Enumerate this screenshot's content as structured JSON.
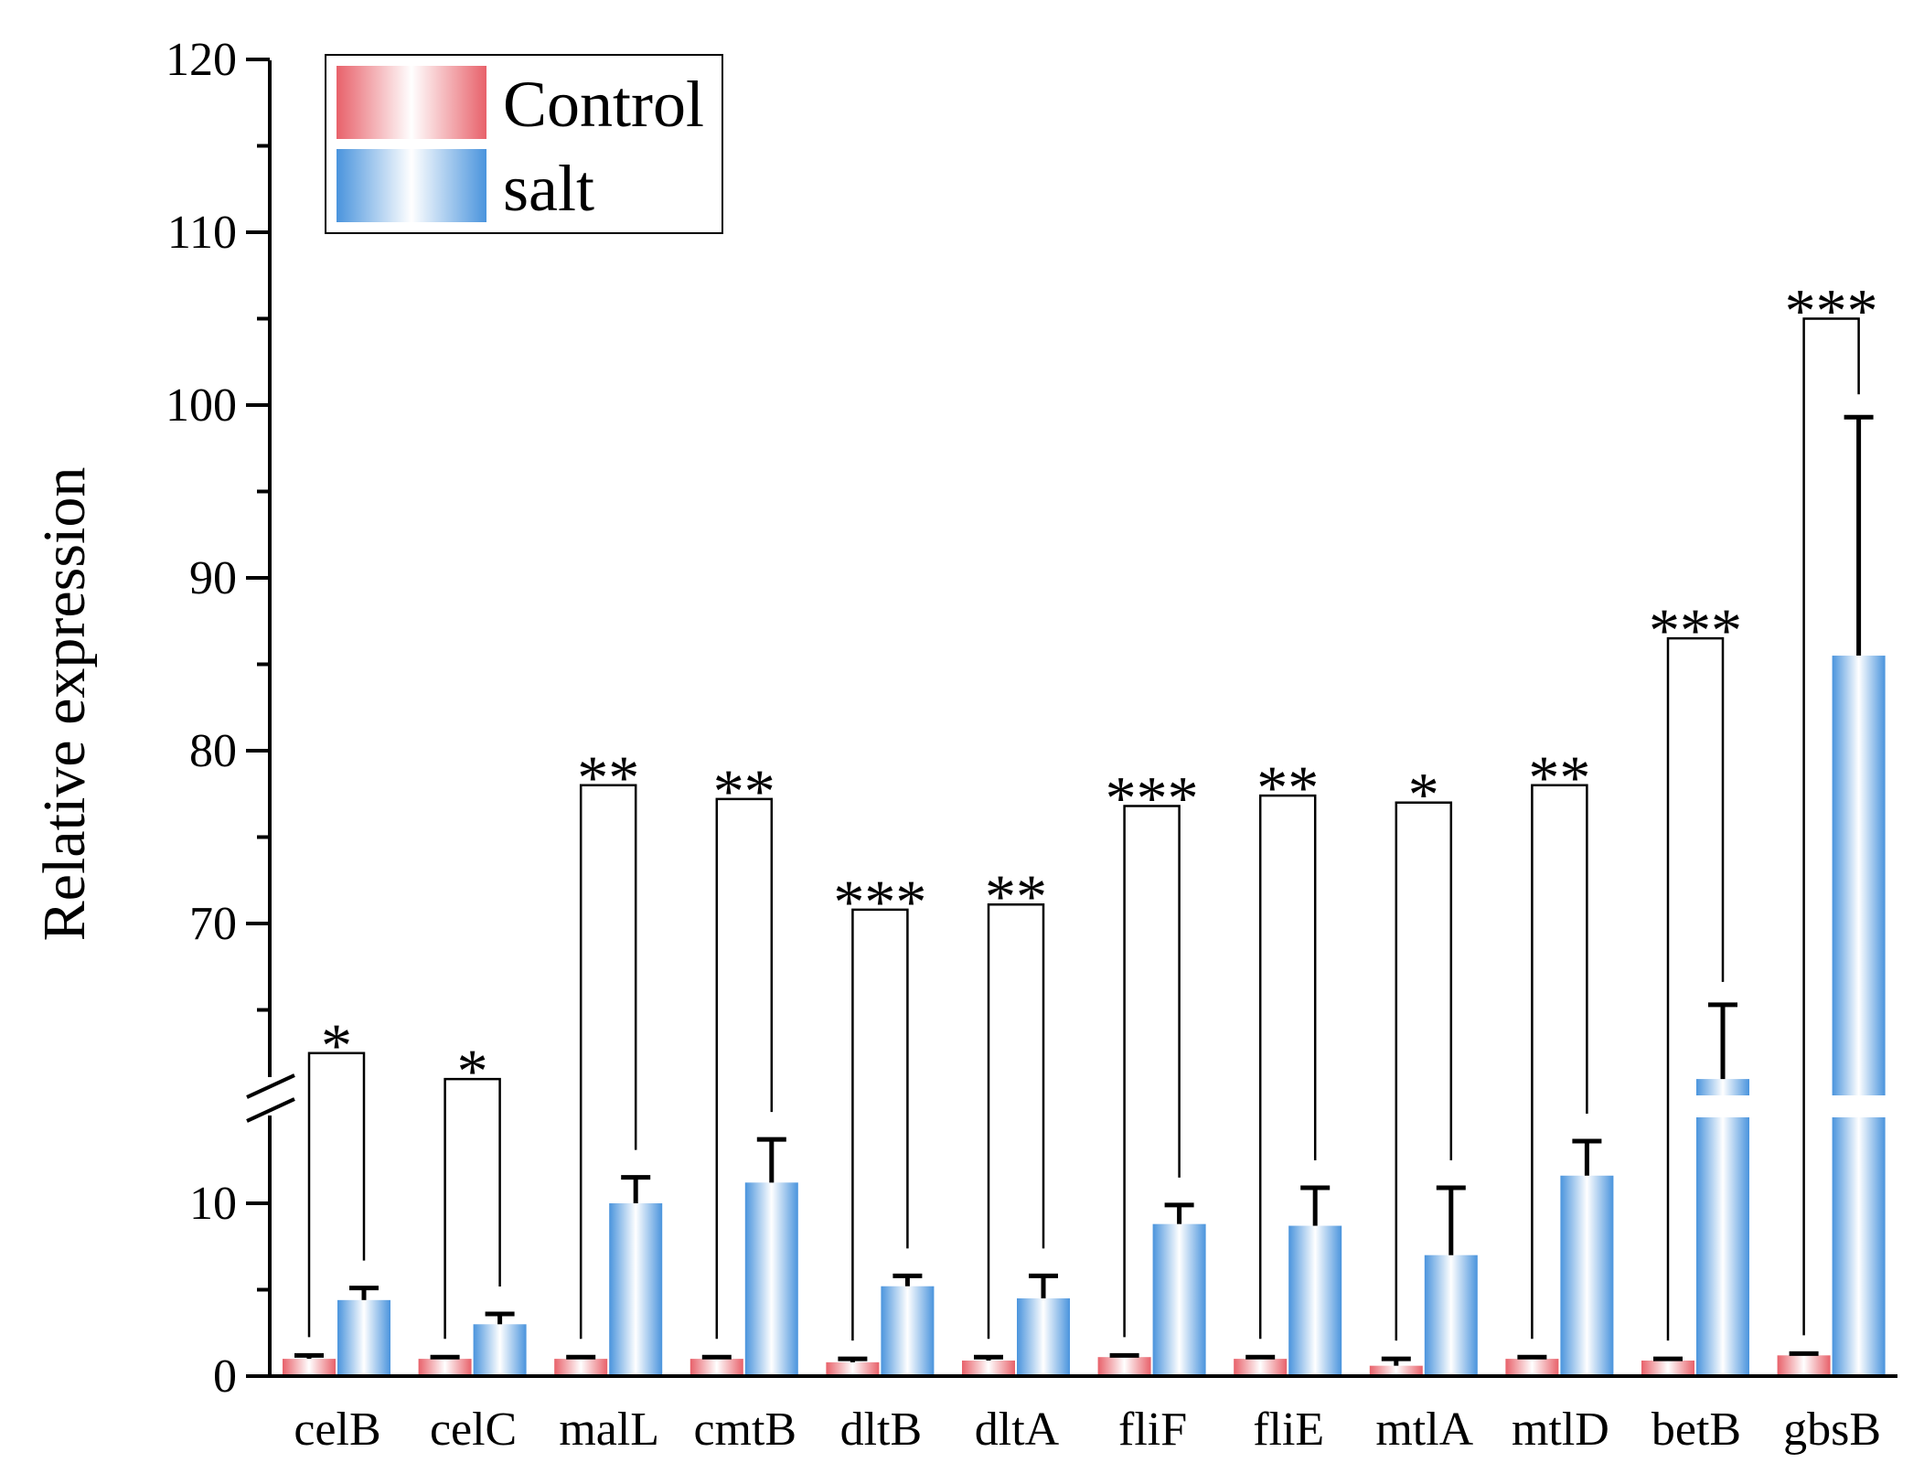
{
  "chart_data": {
    "type": "bar",
    "ylabel": "Relative expression",
    "xlabel": "",
    "title": "",
    "y_axis": {
      "broken": true,
      "lower_range": [
        0,
        15
      ],
      "upper_range": [
        60,
        120
      ],
      "lower_ticks": [
        0,
        10
      ],
      "upper_ticks": [
        70,
        80,
        90,
        100,
        110,
        120
      ]
    },
    "categories": [
      "celB",
      "celC",
      "malL",
      "cmtB",
      "dltB",
      "dltA",
      "fliF",
      "fliE",
      "mtlA",
      "mtlD",
      "betB",
      "gbsB"
    ],
    "series": [
      {
        "name": "Control",
        "color_a": "#e8616a",
        "values": [
          1.0,
          1.0,
          1.0,
          1.0,
          0.8,
          0.9,
          1.1,
          1.0,
          0.6,
          1.0,
          0.9,
          1.2
        ],
        "errors": [
          0.2,
          0.1,
          0.1,
          0.1,
          0.2,
          0.2,
          0.1,
          0.1,
          0.4,
          0.1,
          0.1,
          0.1
        ]
      },
      {
        "name": "salt",
        "color_a": "#4a94dd",
        "values": [
          4.4,
          3.0,
          10.0,
          11.2,
          5.2,
          4.5,
          8.8,
          8.7,
          7.0,
          11.6,
          61.0,
          85.5
        ],
        "errors": [
          0.7,
          0.6,
          1.5,
          2.5,
          0.6,
          1.3,
          1.1,
          2.2,
          3.9,
          2.0,
          4.3,
          13.8
        ]
      }
    ],
    "significance": [
      "*",
      "*",
      "**",
      "**",
      "***",
      "**",
      "***",
      "**",
      "*",
      "**",
      "***",
      "***"
    ],
    "bracket_top": [
      62.5,
      61.0,
      78.0,
      77.2,
      70.8,
      71.1,
      76.8,
      77.4,
      77.0,
      78.0,
      86.5,
      105.0
    ],
    "legend": {
      "position": "top-left",
      "items": [
        {
          "label": "Control",
          "color": "#e8616a"
        },
        {
          "label": "salt",
          "color": "#4a94dd"
        }
      ]
    }
  }
}
